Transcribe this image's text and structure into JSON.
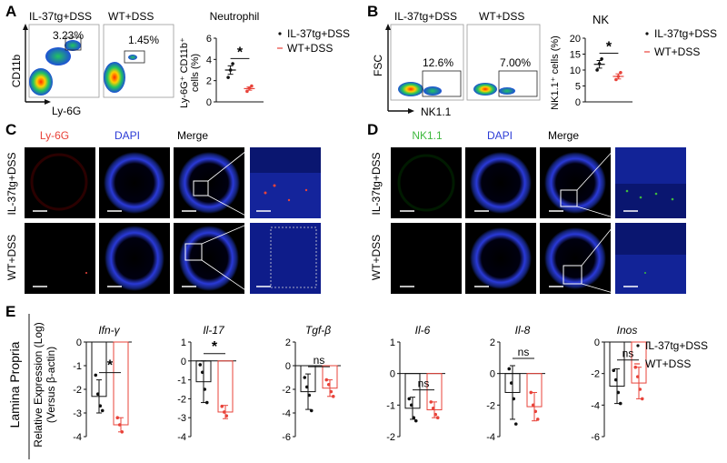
{
  "panels": {
    "A": {
      "letter": "A",
      "flow": {
        "y_axis": "CD11b",
        "x_axis": "Ly-6G",
        "group1": "IL-37tg+DSS",
        "group2": "WT+DSS",
        "pct1": "3.23%",
        "pct2": "1.45%"
      },
      "dot_title": "Neutrophil",
      "dot_ylabel_line1": "Ly-6G⁺ CD11b⁺",
      "dot_ylabel_line2": "cells (%)",
      "sig": "*",
      "legend": [
        "IL-37tg+DSS",
        "WT+DSS"
      ]
    },
    "B": {
      "letter": "B",
      "flow": {
        "y_axis": "FSC",
        "x_axis": "NK1.1",
        "group1": "IL-37tg+DSS",
        "group2": "WT+DSS",
        "pct1": "12.6%",
        "pct2": "7.00%"
      },
      "dot_title": "NK",
      "dot_ylabel": "NK1.1⁺ cells (%)",
      "sig": "*",
      "legend": [
        "IL-37tg+DSS",
        "WT+DSS"
      ]
    },
    "C": {
      "letter": "C",
      "headers": [
        "Ly-6G",
        "DAPI",
        "Merge"
      ],
      "rows": [
        "IL-37tg+DSS",
        "WT+DSS"
      ]
    },
    "D": {
      "letter": "D",
      "headers": [
        "NK1.1",
        "DAPI",
        "Merge"
      ],
      "rows": [
        "IL-37tg+DSS",
        "WT+DSS"
      ]
    },
    "E": {
      "letter": "E",
      "side_label": "Lamina Propria",
      "ylabel_line1": "Relative Expression (Log)",
      "ylabel_line2": "(Versus β-actin)",
      "legend": [
        "IL-37tg+DSS",
        "WT+DSS"
      ]
    }
  },
  "colors": {
    "group1": "#111111",
    "group2": "#e8433a",
    "fluor_red": "#e8433a",
    "fluor_green": "#3fb93f",
    "fluor_blue": "#2b3bd6",
    "dapi_bg": "#000000"
  },
  "chart_data": [
    {
      "type": "scatter",
      "panel": "A",
      "title": "Neutrophil",
      "ylabel": "Ly-6G⁺ CD11b⁺ cells (%)",
      "ylim": [
        0,
        6
      ],
      "yticks": [
        0,
        2,
        4,
        6
      ],
      "series": [
        {
          "name": "IL-37tg+DSS",
          "values": [
            2.3,
            3.0,
            3.6
          ],
          "mean": 3.0,
          "sem": 0.4
        },
        {
          "name": "WT+DSS",
          "values": [
            1.0,
            1.3,
            1.5
          ],
          "mean": 1.25,
          "sem": 0.15
        }
      ],
      "significance": "*"
    },
    {
      "type": "scatter",
      "panel": "B",
      "title": "NK",
      "ylabel": "NK1.1⁺ cells (%)",
      "ylim": [
        0,
        20
      ],
      "yticks": [
        0,
        5,
        10,
        15,
        20
      ],
      "series": [
        {
          "name": "IL-37tg+DSS",
          "values": [
            10.0,
            12.0,
            13.5
          ],
          "mean": 11.8,
          "sem": 1.2
        },
        {
          "name": "WT+DSS",
          "values": [
            7.0,
            8.0,
            9.2
          ],
          "mean": 8.0,
          "sem": 0.8
        }
      ],
      "significance": "*"
    },
    {
      "type": "bar",
      "panel": "E",
      "title": "Ifn-γ",
      "ylim": [
        -4,
        0
      ],
      "yticks": [
        0,
        -1,
        -2,
        -3,
        -4
      ],
      "series": [
        {
          "name": "IL-37tg+DSS",
          "mean": -2.3,
          "sd": 0.7,
          "values": [
            -1.4,
            -2.2,
            -2.7,
            -2.9
          ]
        },
        {
          "name": "WT+DSS",
          "mean": -3.5,
          "sd": 0.3,
          "values": [
            -3.2,
            -3.5,
            -3.8
          ]
        }
      ],
      "significance": "*"
    },
    {
      "type": "bar",
      "panel": "E",
      "title": "Il-17",
      "ylim": [
        -4,
        1
      ],
      "yticks": [
        1,
        0,
        -1,
        -2,
        -3,
        -4
      ],
      "series": [
        {
          "name": "IL-37tg+DSS",
          "mean": -1.1,
          "sd": 1.1,
          "values": [
            -0.2,
            -0.6,
            -1.5,
            -2.2
          ]
        },
        {
          "name": "WT+DSS",
          "mean": -2.7,
          "sd": 0.35,
          "values": [
            -2.4,
            -2.7,
            -2.9
          ]
        }
      ],
      "significance": "*"
    },
    {
      "type": "bar",
      "panel": "E",
      "title": "Tgf-β",
      "ylim": [
        -6,
        2
      ],
      "yticks": [
        2,
        0,
        -2,
        -4,
        -6
      ],
      "series": [
        {
          "name": "IL-37tg+DSS",
          "mean": -2.2,
          "sd": 1.5,
          "values": [
            -1.0,
            -1.8,
            -2.5,
            -3.8
          ]
        },
        {
          "name": "WT+DSS",
          "mean": -1.9,
          "sd": 0.7,
          "values": [
            -1.2,
            -1.6,
            -2.2,
            -2.6
          ]
        }
      ],
      "significance": "ns"
    },
    {
      "type": "bar",
      "panel": "E",
      "title": "Il-6",
      "ylim": [
        -2,
        1
      ],
      "yticks": [
        1,
        0,
        -1,
        -2
      ],
      "series": [
        {
          "name": "IL-37tg+DSS",
          "mean": -1.1,
          "sd": 0.35,
          "values": [
            -0.8,
            -1.0,
            -1.4,
            -1.5
          ]
        },
        {
          "name": "WT+DSS",
          "mean": -1.15,
          "sd": 0.25,
          "values": [
            -0.9,
            -1.1,
            -1.3,
            -1.4
          ]
        }
      ],
      "significance": "ns"
    },
    {
      "type": "bar",
      "panel": "E",
      "title": "Il-8",
      "ylim": [
        -4,
        2
      ],
      "yticks": [
        2,
        0,
        -2,
        -4
      ],
      "series": [
        {
          "name": "IL-37tg+DSS",
          "mean": -1.2,
          "sd": 1.7,
          "values": [
            0.3,
            -0.6,
            -1.6,
            -3.2
          ]
        },
        {
          "name": "WT+DSS",
          "mean": -2.1,
          "sd": 0.9,
          "values": [
            -1.2,
            -2.0,
            -2.4,
            -2.9
          ]
        }
      ],
      "significance": "ns"
    },
    {
      "type": "bar",
      "panel": "E",
      "title": "Inos",
      "ylim": [
        -6,
        0
      ],
      "yticks": [
        0,
        -2,
        -4,
        -6
      ],
      "series": [
        {
          "name": "IL-37tg+DSS",
          "mean": -2.8,
          "sd": 1.1,
          "values": [
            -1.8,
            -2.4,
            -3.2,
            -3.9
          ]
        },
        {
          "name": "WT+DSS",
          "mean": -2.6,
          "sd": 1.0,
          "values": [
            -1.6,
            -2.2,
            -3.0,
            -3.6
          ]
        }
      ],
      "significance": "ns"
    }
  ]
}
